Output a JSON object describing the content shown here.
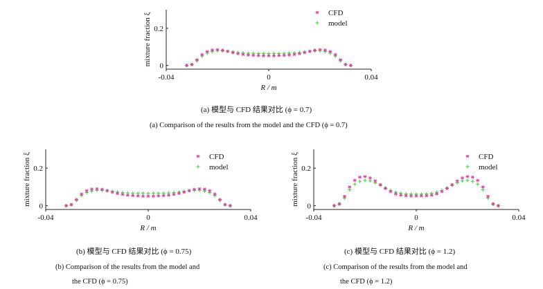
{
  "colors": {
    "cfd": "#e0389c",
    "model": "#3ccf3c",
    "axis": "#222222"
  },
  "chart_data": [
    {
      "type": "scatter",
      "xlabel": "R / m",
      "ylabel": "mixture fraction ξ",
      "xlim": [
        -0.04,
        0.04
      ],
      "ylim": [
        -0.02,
        0.3
      ],
      "xticks": [
        "-0.04",
        "0",
        "0.04"
      ],
      "yticks": [
        "0",
        "0.2"
      ],
      "legend_position": "top-right",
      "series": [
        {
          "name": "CFD",
          "marker": "asterisk",
          "x": [
            -0.032,
            -0.03,
            -0.028,
            -0.026,
            -0.024,
            -0.022,
            -0.02,
            -0.018,
            -0.016,
            -0.014,
            -0.012,
            -0.01,
            -0.008,
            -0.006,
            -0.004,
            -0.002,
            0.0,
            0.002,
            0.004,
            0.006,
            0.008,
            0.01,
            0.012,
            0.014,
            0.016,
            0.018,
            0.02,
            0.022,
            0.024,
            0.026,
            0.028,
            0.03,
            0.032
          ],
          "values": [
            0.0,
            0.005,
            0.03,
            0.058,
            0.075,
            0.083,
            0.085,
            0.082,
            0.076,
            0.069,
            0.063,
            0.059,
            0.056,
            0.054,
            0.053,
            0.052,
            0.052,
            0.052,
            0.053,
            0.054,
            0.056,
            0.059,
            0.063,
            0.069,
            0.076,
            0.082,
            0.085,
            0.083,
            0.075,
            0.058,
            0.03,
            0.005,
            0.0
          ]
        },
        {
          "name": "model",
          "marker": "plus",
          "x": [
            -0.032,
            -0.03,
            -0.028,
            -0.026,
            -0.024,
            -0.022,
            -0.02,
            -0.018,
            -0.016,
            -0.014,
            -0.012,
            -0.01,
            -0.008,
            -0.006,
            -0.004,
            -0.002,
            0.0,
            0.002,
            0.004,
            0.006,
            0.008,
            0.01,
            0.012,
            0.014,
            0.016,
            0.018,
            0.02,
            0.022,
            0.024,
            0.026,
            0.028,
            0.03,
            0.032
          ],
          "values": [
            0.0,
            0.004,
            0.025,
            0.05,
            0.066,
            0.074,
            0.078,
            0.078,
            0.076,
            0.073,
            0.07,
            0.068,
            0.066,
            0.065,
            0.064,
            0.064,
            0.064,
            0.064,
            0.064,
            0.065,
            0.066,
            0.068,
            0.07,
            0.073,
            0.076,
            0.078,
            0.078,
            0.074,
            0.066,
            0.05,
            0.025,
            0.004,
            0.0
          ]
        }
      ]
    },
    {
      "type": "scatter",
      "xlabel": "R / m",
      "ylabel": "mixture fraction ξ",
      "xlim": [
        -0.04,
        0.04
      ],
      "ylim": [
        -0.02,
        0.3
      ],
      "xticks": [
        "-0.04",
        "0",
        "0.04"
      ],
      "yticks": [
        "0",
        "0.2"
      ],
      "legend_position": "top-right",
      "series": [
        {
          "name": "CFD",
          "marker": "asterisk",
          "x": [
            -0.032,
            -0.03,
            -0.028,
            -0.026,
            -0.024,
            -0.022,
            -0.02,
            -0.018,
            -0.016,
            -0.014,
            -0.012,
            -0.01,
            -0.008,
            -0.006,
            -0.004,
            -0.002,
            0.0,
            0.002,
            0.004,
            0.006,
            0.008,
            0.01,
            0.012,
            0.014,
            0.016,
            0.018,
            0.02,
            0.022,
            0.024,
            0.026,
            0.028,
            0.03,
            0.032
          ],
          "values": [
            0.0,
            0.006,
            0.033,
            0.062,
            0.08,
            0.088,
            0.09,
            0.087,
            0.08,
            0.072,
            0.065,
            0.06,
            0.056,
            0.054,
            0.052,
            0.051,
            0.051,
            0.051,
            0.052,
            0.054,
            0.056,
            0.06,
            0.065,
            0.072,
            0.08,
            0.087,
            0.09,
            0.088,
            0.08,
            0.062,
            0.033,
            0.006,
            0.0
          ]
        },
        {
          "name": "model",
          "marker": "plus",
          "x": [
            -0.032,
            -0.03,
            -0.028,
            -0.026,
            -0.024,
            -0.022,
            -0.02,
            -0.018,
            -0.016,
            -0.014,
            -0.012,
            -0.01,
            -0.008,
            -0.006,
            -0.004,
            -0.002,
            0.0,
            0.002,
            0.004,
            0.006,
            0.008,
            0.01,
            0.012,
            0.014,
            0.016,
            0.018,
            0.02,
            0.022,
            0.024,
            0.026,
            0.028,
            0.03,
            0.032
          ],
          "values": [
            0.0,
            0.005,
            0.028,
            0.054,
            0.07,
            0.078,
            0.082,
            0.082,
            0.08,
            0.077,
            0.073,
            0.07,
            0.068,
            0.067,
            0.066,
            0.066,
            0.066,
            0.066,
            0.066,
            0.067,
            0.068,
            0.07,
            0.073,
            0.077,
            0.08,
            0.082,
            0.082,
            0.078,
            0.07,
            0.054,
            0.028,
            0.005,
            0.0
          ]
        }
      ]
    },
    {
      "type": "scatter",
      "xlabel": "R / m",
      "ylabel": "mixture fraction ξ",
      "xlim": [
        -0.04,
        0.04
      ],
      "ylim": [
        -0.02,
        0.3
      ],
      "xticks": [
        "-0.04",
        "0",
        "0.04"
      ],
      "yticks": [
        "0",
        "0.2"
      ],
      "legend_position": "top-right",
      "series": [
        {
          "name": "CFD",
          "marker": "asterisk",
          "x": [
            -0.032,
            -0.03,
            -0.028,
            -0.026,
            -0.024,
            -0.022,
            -0.02,
            -0.018,
            -0.016,
            -0.014,
            -0.012,
            -0.01,
            -0.008,
            -0.006,
            -0.004,
            -0.002,
            0.0,
            0.002,
            0.004,
            0.006,
            0.008,
            0.01,
            0.012,
            0.014,
            0.016,
            0.018,
            0.02,
            0.022,
            0.024,
            0.026,
            0.028,
            0.03,
            0.032
          ],
          "values": [
            0.0,
            0.01,
            0.05,
            0.1,
            0.135,
            0.152,
            0.155,
            0.148,
            0.132,
            0.112,
            0.092,
            0.075,
            0.063,
            0.056,
            0.053,
            0.052,
            0.052,
            0.052,
            0.053,
            0.056,
            0.063,
            0.075,
            0.092,
            0.112,
            0.132,
            0.148,
            0.155,
            0.152,
            0.135,
            0.1,
            0.05,
            0.01,
            0.0
          ]
        },
        {
          "name": "model",
          "marker": "plus",
          "x": [
            -0.032,
            -0.03,
            -0.028,
            -0.026,
            -0.024,
            -0.022,
            -0.02,
            -0.018,
            -0.016,
            -0.014,
            -0.012,
            -0.01,
            -0.008,
            -0.006,
            -0.004,
            -0.002,
            0.0,
            0.002,
            0.004,
            0.006,
            0.008,
            0.01,
            0.012,
            0.014,
            0.016,
            0.018,
            0.02,
            0.022,
            0.024,
            0.026,
            0.028,
            0.03,
            0.032
          ],
          "values": [
            0.0,
            0.008,
            0.04,
            0.085,
            0.115,
            0.13,
            0.135,
            0.132,
            0.122,
            0.108,
            0.094,
            0.082,
            0.072,
            0.066,
            0.063,
            0.062,
            0.062,
            0.062,
            0.063,
            0.066,
            0.072,
            0.082,
            0.094,
            0.108,
            0.122,
            0.132,
            0.135,
            0.13,
            0.115,
            0.085,
            0.04,
            0.008,
            0.0
          ]
        }
      ]
    }
  ],
  "captions": {
    "a_cn": "(a) 模型与 CFD 结果对比 (ϕ = 0.7)",
    "a_en": "(a) Comparison of the results from the model and the CFD (ϕ = 0.7)",
    "b_cn": "(b) 模型与 CFD 结果对比 (ϕ = 0.75)",
    "b_en1": "(b) Comparison of the results from the model and",
    "b_en2": "the CFD (ϕ = 0.75)",
    "c_cn": "(c) 模型与 CFD 结果对比 (ϕ = 1.2)",
    "c_en1": "(c) Comparison of the results from the model and",
    "c_en2": "the CFD (ϕ = 1.2)"
  }
}
